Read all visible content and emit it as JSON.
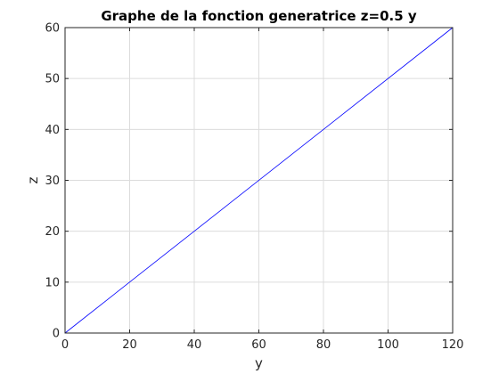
{
  "chart_data": {
    "type": "line",
    "title": "Graphe de la fonction generatrice z=0.5 y",
    "xlabel": "y",
    "ylabel": "z",
    "xlim": [
      0,
      120
    ],
    "ylim": [
      0,
      60
    ],
    "xticks": [
      0,
      20,
      40,
      60,
      80,
      100,
      120
    ],
    "yticks": [
      0,
      10,
      20,
      30,
      40,
      50,
      60
    ],
    "grid": true,
    "series": [
      {
        "x": [
          0,
          120
        ],
        "y": [
          0,
          60
        ],
        "color": "#0000ff"
      }
    ]
  }
}
